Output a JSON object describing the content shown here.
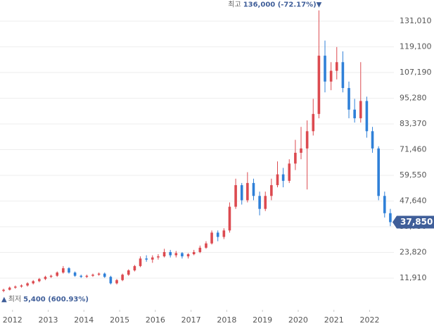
{
  "chart_data": {
    "type": "candlestick",
    "x": [
      2011.75,
      2011.92,
      2012.08,
      2012.25,
      2012.42,
      2012.58,
      2012.75,
      2012.92,
      2013.08,
      2013.25,
      2013.42,
      2013.58,
      2013.75,
      2013.92,
      2014.08,
      2014.25,
      2014.42,
      2014.58,
      2014.75,
      2014.92,
      2015.08,
      2015.25,
      2015.42,
      2015.58,
      2015.75,
      2015.92,
      2016.08,
      2016.25,
      2016.42,
      2016.58,
      2016.75,
      2016.92,
      2017.08,
      2017.25,
      2017.42,
      2017.58,
      2017.75,
      2017.92,
      2018.08,
      2018.25,
      2018.42,
      2018.58,
      2018.75,
      2018.92,
      2019.08,
      2019.25,
      2019.42,
      2019.58,
      2019.75,
      2019.92,
      2020.08,
      2020.25,
      2020.42,
      2020.58,
      2020.75,
      2020.92,
      2021.08,
      2021.25,
      2021.42,
      2021.58,
      2021.75,
      2021.92,
      2022.08,
      2022.25,
      2022.42,
      2022.58
    ],
    "series": {
      "open": [
        6000,
        6500,
        7500,
        8000,
        8500,
        9500,
        10500,
        11500,
        12500,
        13000,
        14500,
        16500,
        14500,
        13000,
        12500,
        13000,
        13500,
        14000,
        12500,
        9500,
        11000,
        13500,
        15500,
        17500,
        21000,
        20500,
        21500,
        22000,
        24000,
        22500,
        23500,
        22000,
        23000,
        24000,
        26000,
        28000,
        33000,
        31000,
        34000,
        45000,
        55000,
        48000,
        56000,
        50000,
        44000,
        50000,
        55000,
        60000,
        57000,
        65000,
        70000,
        72000,
        80000,
        88000,
        115000,
        103000,
        108000,
        112000,
        100000,
        90000,
        86000,
        94000,
        80000,
        72000,
        50000,
        42000
      ],
      "high": [
        7000,
        8000,
        8500,
        9000,
        10000,
        11000,
        12000,
        13000,
        13500,
        15000,
        17500,
        17000,
        15000,
        13500,
        13500,
        14000,
        14500,
        14500,
        13000,
        11500,
        14000,
        16000,
        18000,
        22000,
        22500,
        22500,
        23000,
        25500,
        25000,
        24500,
        24000,
        23500,
        25000,
        27000,
        29000,
        34000,
        34000,
        35000,
        47000,
        58000,
        56000,
        61000,
        58000,
        52000,
        52000,
        58000,
        66000,
        63000,
        67000,
        76000,
        82000,
        85000,
        95000,
        136000,
        122000,
        112000,
        119000,
        117000,
        103000,
        95000,
        112000,
        96000,
        82000,
        73000,
        52000,
        44000
      ],
      "low": [
        5400,
        6200,
        7000,
        7500,
        8000,
        9000,
        10000,
        11000,
        12000,
        12500,
        14000,
        14000,
        12500,
        12000,
        12000,
        12500,
        13000,
        12000,
        9000,
        9000,
        10500,
        13000,
        15000,
        17000,
        19500,
        19000,
        20500,
        21500,
        21500,
        21500,
        21000,
        21000,
        22500,
        23500,
        25500,
        27500,
        29000,
        30000,
        33000,
        44000,
        46000,
        47000,
        48000,
        41000,
        43000,
        48000,
        54000,
        54000,
        56000,
        62000,
        67000,
        53000,
        78000,
        86000,
        98000,
        99000,
        104000,
        98000,
        86000,
        84000,
        84000,
        77000,
        70000,
        48000,
        40000,
        36000
      ],
      "close": [
        6500,
        7500,
        8000,
        8500,
        9500,
        10500,
        11500,
        12500,
        13000,
        14500,
        16500,
        14500,
        13000,
        12500,
        13000,
        13500,
        14000,
        12500,
        9500,
        11000,
        13500,
        15500,
        17500,
        21000,
        20500,
        21500,
        22000,
        24000,
        22500,
        23500,
        22000,
        23000,
        24000,
        26000,
        28000,
        33000,
        31000,
        34000,
        45000,
        55000,
        48000,
        56000,
        50000,
        44000,
        50000,
        55000,
        60000,
        57000,
        65000,
        70000,
        72000,
        80000,
        88000,
        115000,
        103000,
        108000,
        112000,
        100000,
        90000,
        86000,
        94000,
        80000,
        72000,
        50000,
        42000,
        37850
      ]
    },
    "up_color": "#dc4a50",
    "down_color": "#2f80d8",
    "xlim": [
      2011.65,
      2022.68
    ],
    "xticks": [
      2012,
      2013,
      2014,
      2015,
      2016,
      2017,
      2018,
      2019,
      2020,
      2021,
      2022
    ],
    "ylim": [
      -2770,
      140800
    ],
    "yticks": [
      {
        "value": 11910,
        "label": "11,910"
      },
      {
        "value": 23820,
        "label": "23,820"
      },
      {
        "value": 35730,
        "label": "35,730"
      },
      {
        "value": 47640,
        "label": "47,640"
      },
      {
        "value": 59550,
        "label": "59,550"
      },
      {
        "value": 71460,
        "label": "71,460"
      },
      {
        "value": 83370,
        "label": "83,370"
      },
      {
        "value": 95280,
        "label": "95,280"
      },
      {
        "value": 107190,
        "label": "107,190"
      },
      {
        "value": 119100,
        "label": "119,100"
      },
      {
        "value": 131010,
        "label": "131,010"
      }
    ],
    "grid": true,
    "high_annotation": {
      "prefix": "최고",
      "label": "136,000 (-72.17%)",
      "marker": "▼"
    },
    "low_annotation": {
      "marker": "▲",
      "prefix": "최저",
      "label": "5,400 (600.93%)"
    },
    "current_price": {
      "value": 37850,
      "label": "37,850"
    }
  }
}
